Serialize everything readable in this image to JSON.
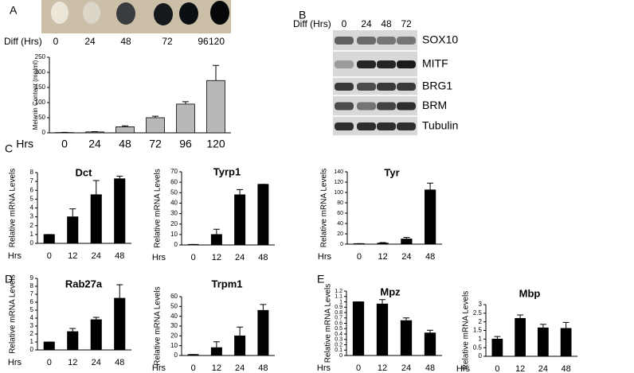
{
  "panel_labels": [
    "A",
    "B",
    "C",
    "D",
    "E"
  ],
  "photo": {
    "label": "Diff (Hrs)",
    "lanes": [
      "0",
      "24",
      "48",
      "72",
      "96",
      "120"
    ]
  },
  "blot": {
    "label": "Diff (Hrs)",
    "lanes": [
      "0",
      "24",
      "48",
      "72"
    ],
    "rows": [
      "SOX10",
      "MITF",
      "BRG1",
      "BRM",
      "Tubulin"
    ]
  },
  "chart_data": [
    {
      "type": "bar",
      "ylabel": "Melanin Content (mg/ml)",
      "xlabel": "Hrs",
      "categories": [
        "0",
        "24",
        "48",
        "72",
        "96",
        "120"
      ],
      "values": [
        1,
        3,
        20,
        50,
        95,
        173
      ],
      "errors": [
        0.5,
        1,
        3,
        5,
        8,
        50
      ],
      "ylim": [
        0,
        250
      ],
      "yticks": [
        0,
        50,
        100,
        150,
        200,
        250
      ],
      "color": "#b8b8b8"
    },
    {
      "type": "bar",
      "title": "Dct",
      "ylabel": "Relative mRNA Levels",
      "xlabel": "Hrs",
      "categories": [
        "0",
        "12",
        "24",
        "48"
      ],
      "values": [
        1,
        3,
        5.5,
        7.3
      ],
      "errors": [
        0,
        0.9,
        1.6,
        0.3
      ],
      "ylim": [
        0,
        8
      ],
      "yticks": [
        0,
        1,
        2,
        3,
        4,
        5,
        6,
        7,
        8
      ],
      "color": "#000000"
    },
    {
      "type": "bar",
      "title": "Tyrp1",
      "ylabel": "Relative mRNA Levels",
      "xlabel": "Hrs",
      "categories": [
        "0",
        "12",
        "24",
        "48"
      ],
      "values": [
        0.5,
        10,
        48,
        58
      ],
      "errors": [
        0,
        5,
        5,
        0
      ],
      "ylim": [
        0,
        70
      ],
      "yticks": [
        0,
        10,
        20,
        30,
        40,
        50,
        60,
        70
      ],
      "color": "#000000"
    },
    {
      "type": "bar",
      "title": "Tyr",
      "ylabel": "Relative mRNA Levels",
      "xlabel": "Hrs",
      "categories": [
        "0",
        "12",
        "24",
        "48"
      ],
      "values": [
        1,
        2,
        10,
        105
      ],
      "errors": [
        0,
        1,
        3,
        13
      ],
      "ylim": [
        0,
        140
      ],
      "yticks": [
        0,
        20,
        40,
        60,
        80,
        100,
        120,
        140
      ],
      "color": "#000000"
    },
    {
      "type": "bar",
      "title": "Rab27a",
      "ylabel": "Relative mRNA Levels",
      "xlabel": "Hrs",
      "categories": [
        "0",
        "12",
        "24",
        "48"
      ],
      "values": [
        1,
        2.3,
        3.8,
        6.5
      ],
      "errors": [
        0,
        0.4,
        0.3,
        1.7
      ],
      "ylim": [
        0,
        9
      ],
      "yticks": [
        0,
        1,
        2,
        3,
        4,
        5,
        6,
        7,
        8,
        9
      ],
      "color": "#000000"
    },
    {
      "type": "bar",
      "title": "Trpm1",
      "ylabel": "Relative mRNA Levels",
      "xlabel": "Hrs",
      "categories": [
        "0",
        "12",
        "24",
        "48"
      ],
      "values": [
        1,
        8,
        20,
        46
      ],
      "errors": [
        0,
        6,
        9,
        6
      ],
      "ylim": [
        0,
        60
      ],
      "yticks": [
        0,
        10,
        20,
        30,
        40,
        50,
        60
      ],
      "color": "#000000"
    },
    {
      "type": "bar",
      "title": "Mpz",
      "ylabel": "Relative mRNA Levels",
      "xlabel": "Hrs",
      "categories": [
        "0",
        "12",
        "24",
        "48"
      ],
      "values": [
        1,
        0.96,
        0.65,
        0.42
      ],
      "errors": [
        0,
        0.08,
        0.05,
        0.05
      ],
      "ylim": [
        0,
        1.2
      ],
      "yticks": [
        0,
        0.1,
        0.2,
        0.3,
        0.4,
        0.5,
        0.6,
        0.7,
        0.8,
        0.9,
        1,
        1.1,
        1.2
      ],
      "color": "#000000"
    },
    {
      "type": "bar",
      "title": "Mbp",
      "ylabel": "Relative mRNA Levels",
      "xlabel": "Hrs",
      "categories": [
        "0",
        "12",
        "24",
        "48"
      ],
      "values": [
        1,
        2.2,
        1.65,
        1.62
      ],
      "errors": [
        0.15,
        0.2,
        0.2,
        0.35
      ],
      "ylim": [
        0,
        3
      ],
      "yticks": [
        0,
        0.5,
        1,
        1.5,
        2,
        2.5,
        3
      ],
      "color": "#000000"
    }
  ]
}
